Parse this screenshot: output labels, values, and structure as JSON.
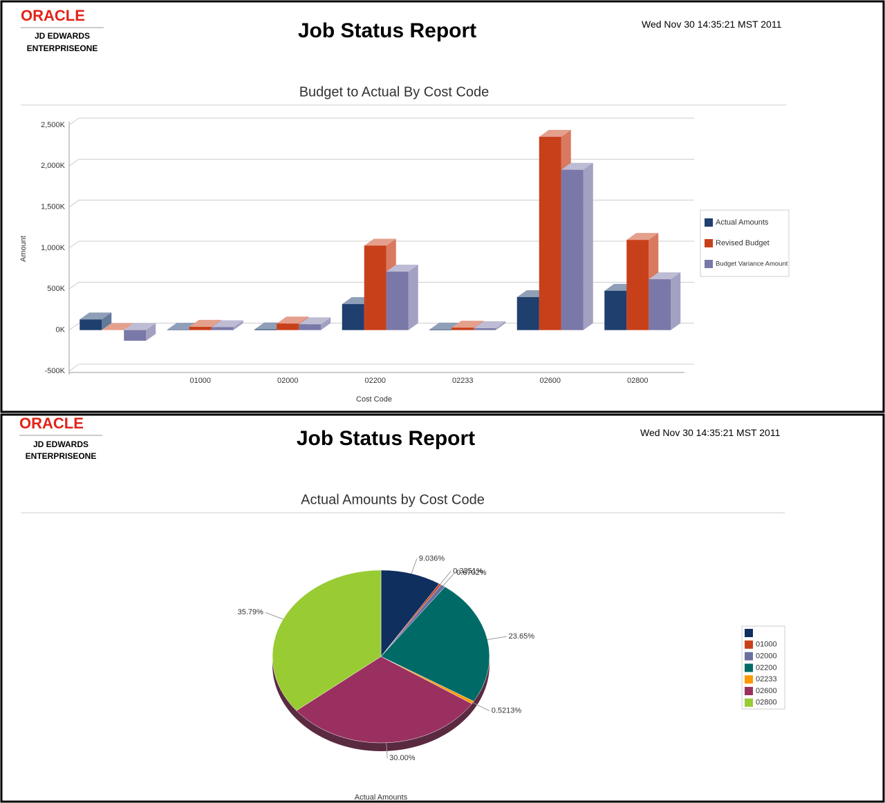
{
  "headers": [
    {
      "brand": "ORACLE",
      "product": "JD EDWARDS",
      "suite": "ENTERPRISEONE",
      "title": "Job Status Report",
      "timestamp": "Wed Nov 30 14:35:21 MST 2011"
    },
    {
      "brand": "ORACLE",
      "product": "JD EDWARDS",
      "suite": "ENTERPRISEONE",
      "title": "Job Status Report",
      "timestamp": "Wed Nov 30 14:35:21 MST 2011"
    }
  ],
  "chart_data": [
    {
      "type": "bar",
      "title": "Budget to Actual By Cost Code",
      "x_label": "Cost Code",
      "y_label": "Amount",
      "categories": [
        null,
        "01000",
        "02000",
        "02200",
        "02233",
        "02600",
        "02800"
      ],
      "series": [
        {
          "name": "Actual Amounts",
          "color": "#1f3f6e",
          "values": [
            130000,
            4500,
            9000,
            317000,
            7000,
            402000,
            480000
          ]
        },
        {
          "name": "Revised Budget",
          "color": "#c8401a",
          "values": [
            0,
            40000,
            80000,
            1030000,
            30000,
            2357000,
            1100000
          ]
        },
        {
          "name": "Budget Variance Amount",
          "color": "#7a78a8",
          "values": [
            -130000,
            35500,
            71000,
            713000,
            23000,
            1955000,
            620000
          ]
        }
      ],
      "ylim": [
        -500000,
        2500000
      ],
      "yticks": [
        {
          "value": -500000,
          "label": "-500K"
        },
        {
          "value": 0,
          "label": "0K"
        },
        {
          "value": 500000,
          "label": "500K"
        },
        {
          "value": 1000000,
          "label": "1,000K"
        },
        {
          "value": 1500000,
          "label": "1,500K"
        },
        {
          "value": 2000000,
          "label": "2,000K"
        },
        {
          "value": 2500000,
          "label": "2,500K"
        }
      ],
      "grid": true,
      "legend": "right"
    },
    {
      "type": "pie",
      "title": "Actual Amounts by Cost Code",
      "x_label": "Actual Amounts",
      "categories": [
        null,
        "01000",
        "02000",
        "02200",
        "02233",
        "02600",
        "02800"
      ],
      "values": [
        9.036,
        0.3351,
        0.6702,
        23.65,
        0.5213,
        30.0,
        35.79
      ],
      "value_labels": [
        "9.036%",
        "0.3351%",
        "0.6702%",
        "23.65%",
        "0.5213%",
        "30.00%",
        "35.79%"
      ],
      "colors": [
        "#0f2f5f",
        "#c8401a",
        "#6a6fa0",
        "#006a66",
        "#ff9900",
        "#9a3060",
        "#99cc33"
      ],
      "legend": "right"
    }
  ]
}
